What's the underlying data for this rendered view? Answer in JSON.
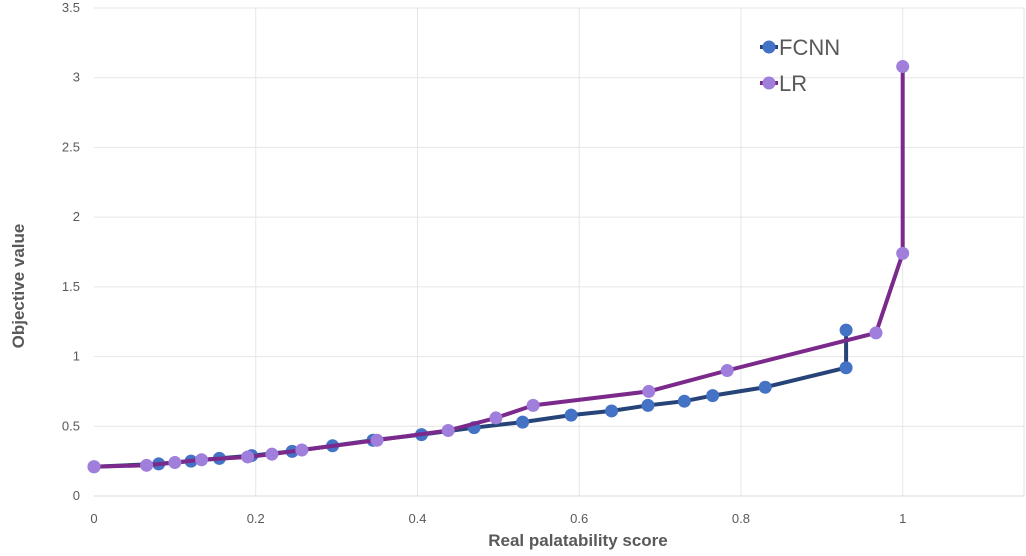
{
  "chart_data": {
    "type": "line",
    "title": "",
    "xlabel": "Real palatability score",
    "ylabel": "Objective value",
    "xlim": [
      0,
      1.15
    ],
    "ylim": [
      0,
      3.5
    ],
    "xticks": [
      0,
      0.2,
      0.4,
      0.6,
      0.8,
      1
    ],
    "xtick_labels": [
      "0",
      "0.2",
      "0.4",
      "0.6",
      "0.8",
      "1"
    ],
    "yticks": [
      0,
      0.5,
      1,
      1.5,
      2,
      2.5,
      3,
      3.5
    ],
    "ytick_labels": [
      "0",
      "0.5",
      "1",
      "1.5",
      "2",
      "2.5",
      "3",
      "3.5"
    ],
    "grid": true,
    "legend_position": "top-right",
    "series": [
      {
        "name": "FCNN",
        "line_color": "#264478",
        "marker_color": "#4472C4",
        "x": [
          0.0,
          0.08,
          0.12,
          0.155,
          0.195,
          0.245,
          0.295,
          0.345,
          0.405,
          0.47,
          0.53,
          0.59,
          0.64,
          0.685,
          0.73,
          0.765,
          0.83,
          0.93,
          0.93
        ],
        "y": [
          0.21,
          0.23,
          0.25,
          0.27,
          0.29,
          0.32,
          0.36,
          0.4,
          0.44,
          0.49,
          0.53,
          0.58,
          0.61,
          0.65,
          0.68,
          0.72,
          0.78,
          0.92,
          1.19
        ]
      },
      {
        "name": "LR",
        "line_color": "#7B2A8C",
        "marker_color": "#9F7FDB",
        "x": [
          0.0,
          0.065,
          0.1,
          0.133,
          0.19,
          0.22,
          0.257,
          0.35,
          0.438,
          0.497,
          0.543,
          0.686,
          0.783,
          0.967,
          1.0,
          1.0
        ],
        "y": [
          0.21,
          0.22,
          0.24,
          0.26,
          0.28,
          0.3,
          0.33,
          0.4,
          0.47,
          0.56,
          0.65,
          0.75,
          0.9,
          1.17,
          1.74,
          3.08
        ]
      }
    ]
  }
}
